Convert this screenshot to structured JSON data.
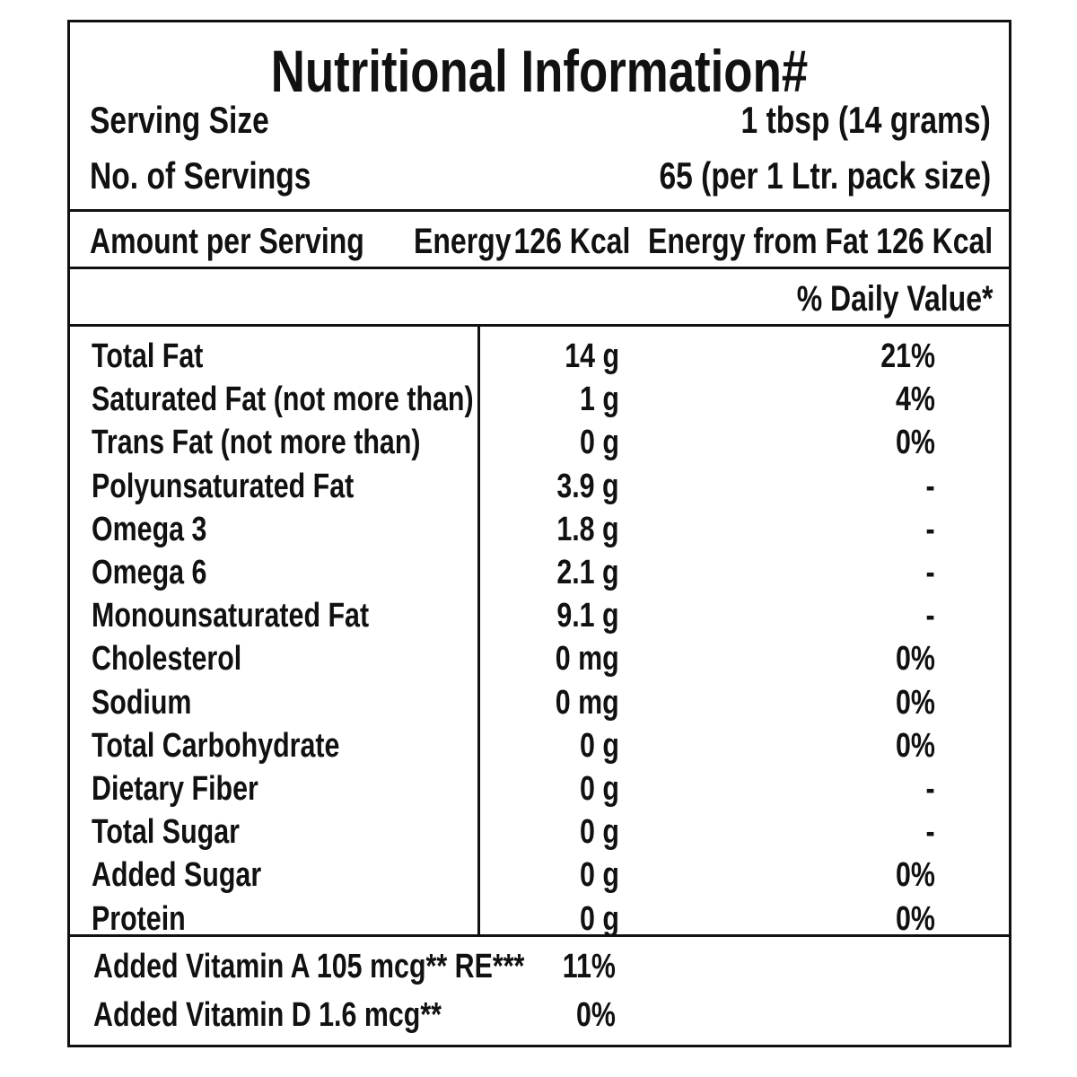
{
  "title": "Nutritional Information#",
  "serving": {
    "size_label": "Serving Size",
    "size_value": "1 tbsp (14 grams)",
    "count_label": "No. of Servings",
    "count_value": "65 (per 1 Ltr. pack size)"
  },
  "amount_row": {
    "label": "Amount per Serving",
    "energy_label": "Energy",
    "energy_value": "126 Kcal",
    "energy_fat": "Energy from Fat 126 Kcal"
  },
  "daily_value_header": "% Daily Value*",
  "nutrients": [
    {
      "name": "Total Fat",
      "amount": "14 g",
      "dv": "21%"
    },
    {
      "name": "Saturated Fat (not more than)",
      "amount": "1 g",
      "dv": "4%"
    },
    {
      "name": "Trans Fat (not more than)",
      "amount": "0 g",
      "dv": "0%"
    },
    {
      "name": "Polyunsaturated Fat",
      "amount": "3.9 g",
      "dv": "-"
    },
    {
      "name": "Omega 3",
      "amount": "1.8 g",
      "dv": "-"
    },
    {
      "name": "Omega 6",
      "amount": "2.1 g",
      "dv": "-"
    },
    {
      "name": "Monounsaturated Fat",
      "amount": "9.1 g",
      "dv": "-"
    },
    {
      "name": "Cholesterol",
      "amount": "0 mg",
      "dv": "0%"
    },
    {
      "name": "Sodium",
      "amount": "0 mg",
      "dv": "0%"
    },
    {
      "name": "Total Carbohydrate",
      "amount": "0 g",
      "dv": "0%"
    },
    {
      "name": "Dietary Fiber",
      "amount": "0 g",
      "dv": "-"
    },
    {
      "name": "Total Sugar",
      "amount": "0 g",
      "dv": "-"
    },
    {
      "name": "Added Sugar",
      "amount": "0 g",
      "dv": "0%"
    },
    {
      "name": "Protein",
      "amount": "0 g",
      "dv": "0%"
    }
  ],
  "vitamins": [
    {
      "name": "Added Vitamin A 105 mcg** RE***",
      "dv": "11%"
    },
    {
      "name": "Added Vitamin D 1.6 mcg**",
      "dv": "0%"
    }
  ]
}
